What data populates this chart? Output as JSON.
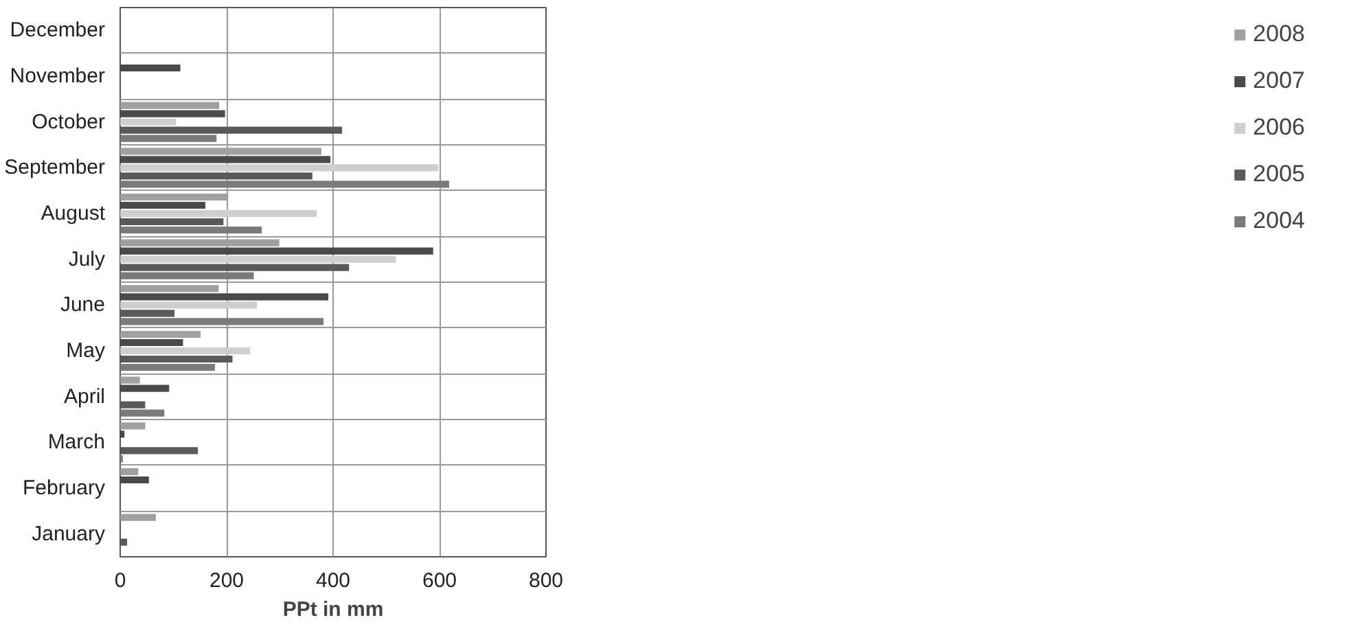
{
  "chart_data": {
    "type": "bar",
    "orientation": "horizontal",
    "xlabel": "PPt in mm",
    "categories": [
      "December",
      "November",
      "October",
      "September",
      "August",
      "July",
      "June",
      "May",
      "April",
      "March",
      "February",
      "January"
    ],
    "series": [
      {
        "name": "2008",
        "color": "#a0a0a0",
        "values": [
          null,
          null,
          186,
          378,
          203,
          299,
          185,
          151,
          37,
          47,
          34,
          67
        ]
      },
      {
        "name": "2007",
        "color": "#4a4a4a",
        "values": [
          null,
          113,
          197,
          395,
          160,
          588,
          391,
          118,
          92,
          8,
          54,
          null
        ]
      },
      {
        "name": "2006",
        "color": "#cfcfcf",
        "values": [
          null,
          null,
          105,
          598,
          369,
          518,
          257,
          244,
          null,
          null,
          null,
          null
        ]
      },
      {
        "name": "2005",
        "color": "#5a5a5a",
        "values": [
          null,
          null,
          417,
          361,
          194,
          430,
          102,
          211,
          47,
          146,
          null,
          13
        ]
      },
      {
        "name": "2004",
        "color": "#7a7a7a",
        "values": [
          null,
          null,
          181,
          618,
          266,
          251,
          382,
          178,
          83,
          5,
          null,
          null
        ]
      }
    ],
    "xlim": [
      0,
      800
    ],
    "xticks": [
      0,
      200,
      400,
      600,
      800
    ],
    "grid": true,
    "legend": "right"
  }
}
